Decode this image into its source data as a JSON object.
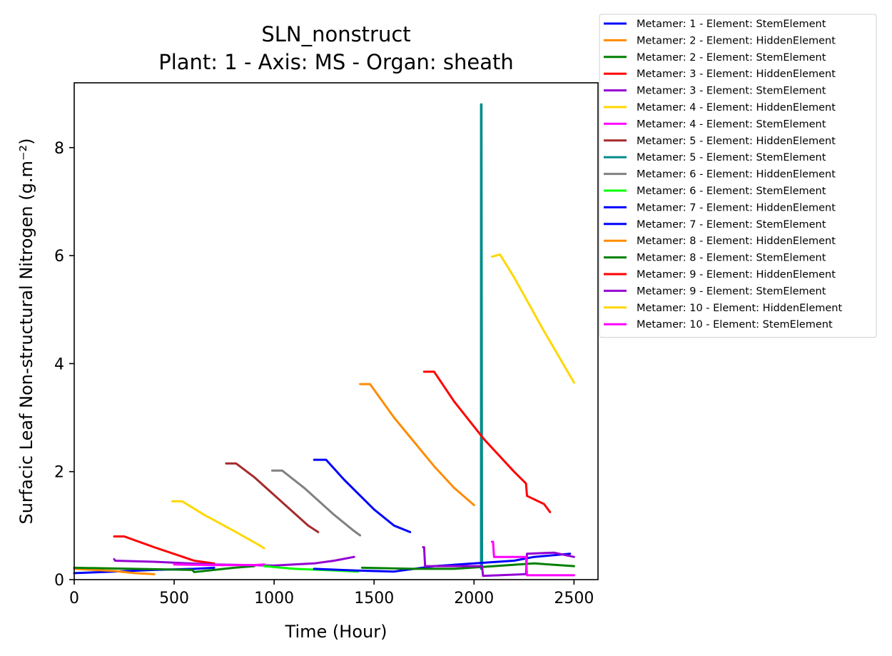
{
  "chart_data": {
    "type": "line",
    "title": "SLN_nonstruct",
    "subtitle": "Plant: 1 - Axis: MS - Organ: sheath",
    "xlabel": "Time (Hour)",
    "ylabel": "Surfacic Leaf Non-structural Nitrogen (g.m⁻²)",
    "xlim": [
      0,
      2620
    ],
    "ylim": [
      0,
      9.2
    ],
    "xticks": [
      0,
      500,
      1000,
      1500,
      2000,
      2500
    ],
    "yticks": [
      0,
      2,
      4,
      6,
      8
    ],
    "grid": false,
    "legend_position": "outside-top-right",
    "series": [
      {
        "name": "Metamer: 1 - Element: StemElement",
        "color": "#0000ff",
        "x": [
          0,
          200,
          400,
          600,
          700
        ],
        "y": [
          0.12,
          0.15,
          0.18,
          0.2,
          0.22
        ]
      },
      {
        "name": "Metamer: 2 - Element: HiddenElement",
        "color": "#ff8c00",
        "x": [
          0,
          200,
          300,
          400
        ],
        "y": [
          0.2,
          0.16,
          0.12,
          0.1
        ]
      },
      {
        "name": "Metamer: 2 - Element: StemElement",
        "color": "#008000",
        "x": [
          0,
          300,
          590,
          600,
          800,
          900
        ],
        "y": [
          0.22,
          0.2,
          0.18,
          0.14,
          0.22,
          0.25
        ]
      },
      {
        "name": "Metamer: 3 - Element: HiddenElement",
        "color": "#ff0000",
        "x": [
          200,
          250,
          400,
          600,
          700
        ],
        "y": [
          0.8,
          0.8,
          0.6,
          0.35,
          0.3
        ]
      },
      {
        "name": "Metamer: 3 - Element: StemElement",
        "color": "#9400d3",
        "x": [
          200,
          205,
          400,
          700,
          1000,
          1200,
          1300,
          1400
        ],
        "y": [
          0.38,
          0.35,
          0.33,
          0.28,
          0.26,
          0.3,
          0.35,
          0.42
        ]
      },
      {
        "name": "Metamer: 4 - Element: HiddenElement",
        "color": "#ffd700",
        "x": [
          490,
          540,
          650,
          800,
          920,
          950
        ],
        "y": [
          1.45,
          1.45,
          1.2,
          0.9,
          0.65,
          0.58
        ]
      },
      {
        "name": "Metamer: 4 - Element: StemElement",
        "color": "#ff00ff",
        "x": [
          500,
          700,
          900,
          950
        ],
        "y": [
          0.28,
          0.27,
          0.27,
          0.28
        ]
      },
      {
        "name": "Metamer: 5 - Element: HiddenElement",
        "color": "#a52a2a",
        "x": [
          760,
          810,
          900,
          1050,
          1170,
          1220
        ],
        "y": [
          2.15,
          2.15,
          1.9,
          1.4,
          1.0,
          0.88
        ]
      },
      {
        "name": "Metamer: 5 - Element: StemElement",
        "color": "#008b8b",
        "x": [
          2035,
          2035,
          2037,
          2040
        ],
        "y": [
          0.2,
          8.8,
          8.8,
          0.2
        ]
      },
      {
        "name": "Metamer: 6 - Element: HiddenElement",
        "color": "#808080",
        "x": [
          990,
          1040,
          1150,
          1300,
          1400,
          1430
        ],
        "y": [
          2.02,
          2.02,
          1.7,
          1.2,
          0.9,
          0.82
        ]
      },
      {
        "name": "Metamer: 6 - Element: StemElement",
        "color": "#00ff00",
        "x": [
          950,
          1100,
          1300,
          1420
        ],
        "y": [
          0.25,
          0.2,
          0.17,
          0.15
        ]
      },
      {
        "name": "Metamer: 7 - Element: HiddenElement",
        "color": "#0000ff",
        "x": [
          1200,
          1260,
          1350,
          1500,
          1600,
          1680
        ],
        "y": [
          2.22,
          2.22,
          1.85,
          1.3,
          1.0,
          0.88
        ]
      },
      {
        "name": "Metamer: 7 - Element: StemElement",
        "color": "#0000ff",
        "x": [
          1200,
          1400,
          1600,
          1800,
          2000,
          2200,
          2300,
          2480
        ],
        "y": [
          0.2,
          0.17,
          0.15,
          0.25,
          0.3,
          0.35,
          0.42,
          0.48
        ]
      },
      {
        "name": "Metamer: 8 - Element: HiddenElement",
        "color": "#ff8c00",
        "x": [
          1430,
          1480,
          1600,
          1800,
          1900,
          2000
        ],
        "y": [
          3.62,
          3.62,
          3.0,
          2.1,
          1.7,
          1.38
        ]
      },
      {
        "name": "Metamer: 8 - Element: StemElement",
        "color": "#008000",
        "x": [
          1440,
          1700,
          1900,
          2100,
          2300,
          2500
        ],
        "y": [
          0.22,
          0.2,
          0.2,
          0.25,
          0.3,
          0.25
        ]
      },
      {
        "name": "Metamer: 9 - Element: HiddenElement",
        "color": "#ff0000",
        "x": [
          1750,
          1800,
          1900,
          2050,
          2200,
          2260,
          2265,
          2350,
          2380
        ],
        "y": [
          3.85,
          3.85,
          3.3,
          2.6,
          2.0,
          1.78,
          1.55,
          1.4,
          1.25
        ]
      },
      {
        "name": "Metamer: 9 - Element: StemElement",
        "color": "#9400d3",
        "x": [
          1745,
          1750,
          1755,
          2000,
          2040,
          2045,
          2260,
          2265,
          2400,
          2500
        ],
        "y": [
          0.6,
          0.6,
          0.25,
          0.25,
          0.25,
          0.07,
          0.1,
          0.48,
          0.5,
          0.42
        ]
      },
      {
        "name": "Metamer: 10 - Element: HiddenElement",
        "color": "#ffd700",
        "x": [
          2090,
          2130,
          2200,
          2350,
          2500
        ],
        "y": [
          5.98,
          6.02,
          5.6,
          4.6,
          3.65
        ]
      },
      {
        "name": "Metamer: 10 - Element: StemElement",
        "color": "#ff00ff",
        "x": [
          2090,
          2095,
          2100,
          2260,
          2265,
          2500
        ],
        "y": [
          0.7,
          0.7,
          0.42,
          0.42,
          0.08,
          0.08
        ]
      }
    ]
  }
}
